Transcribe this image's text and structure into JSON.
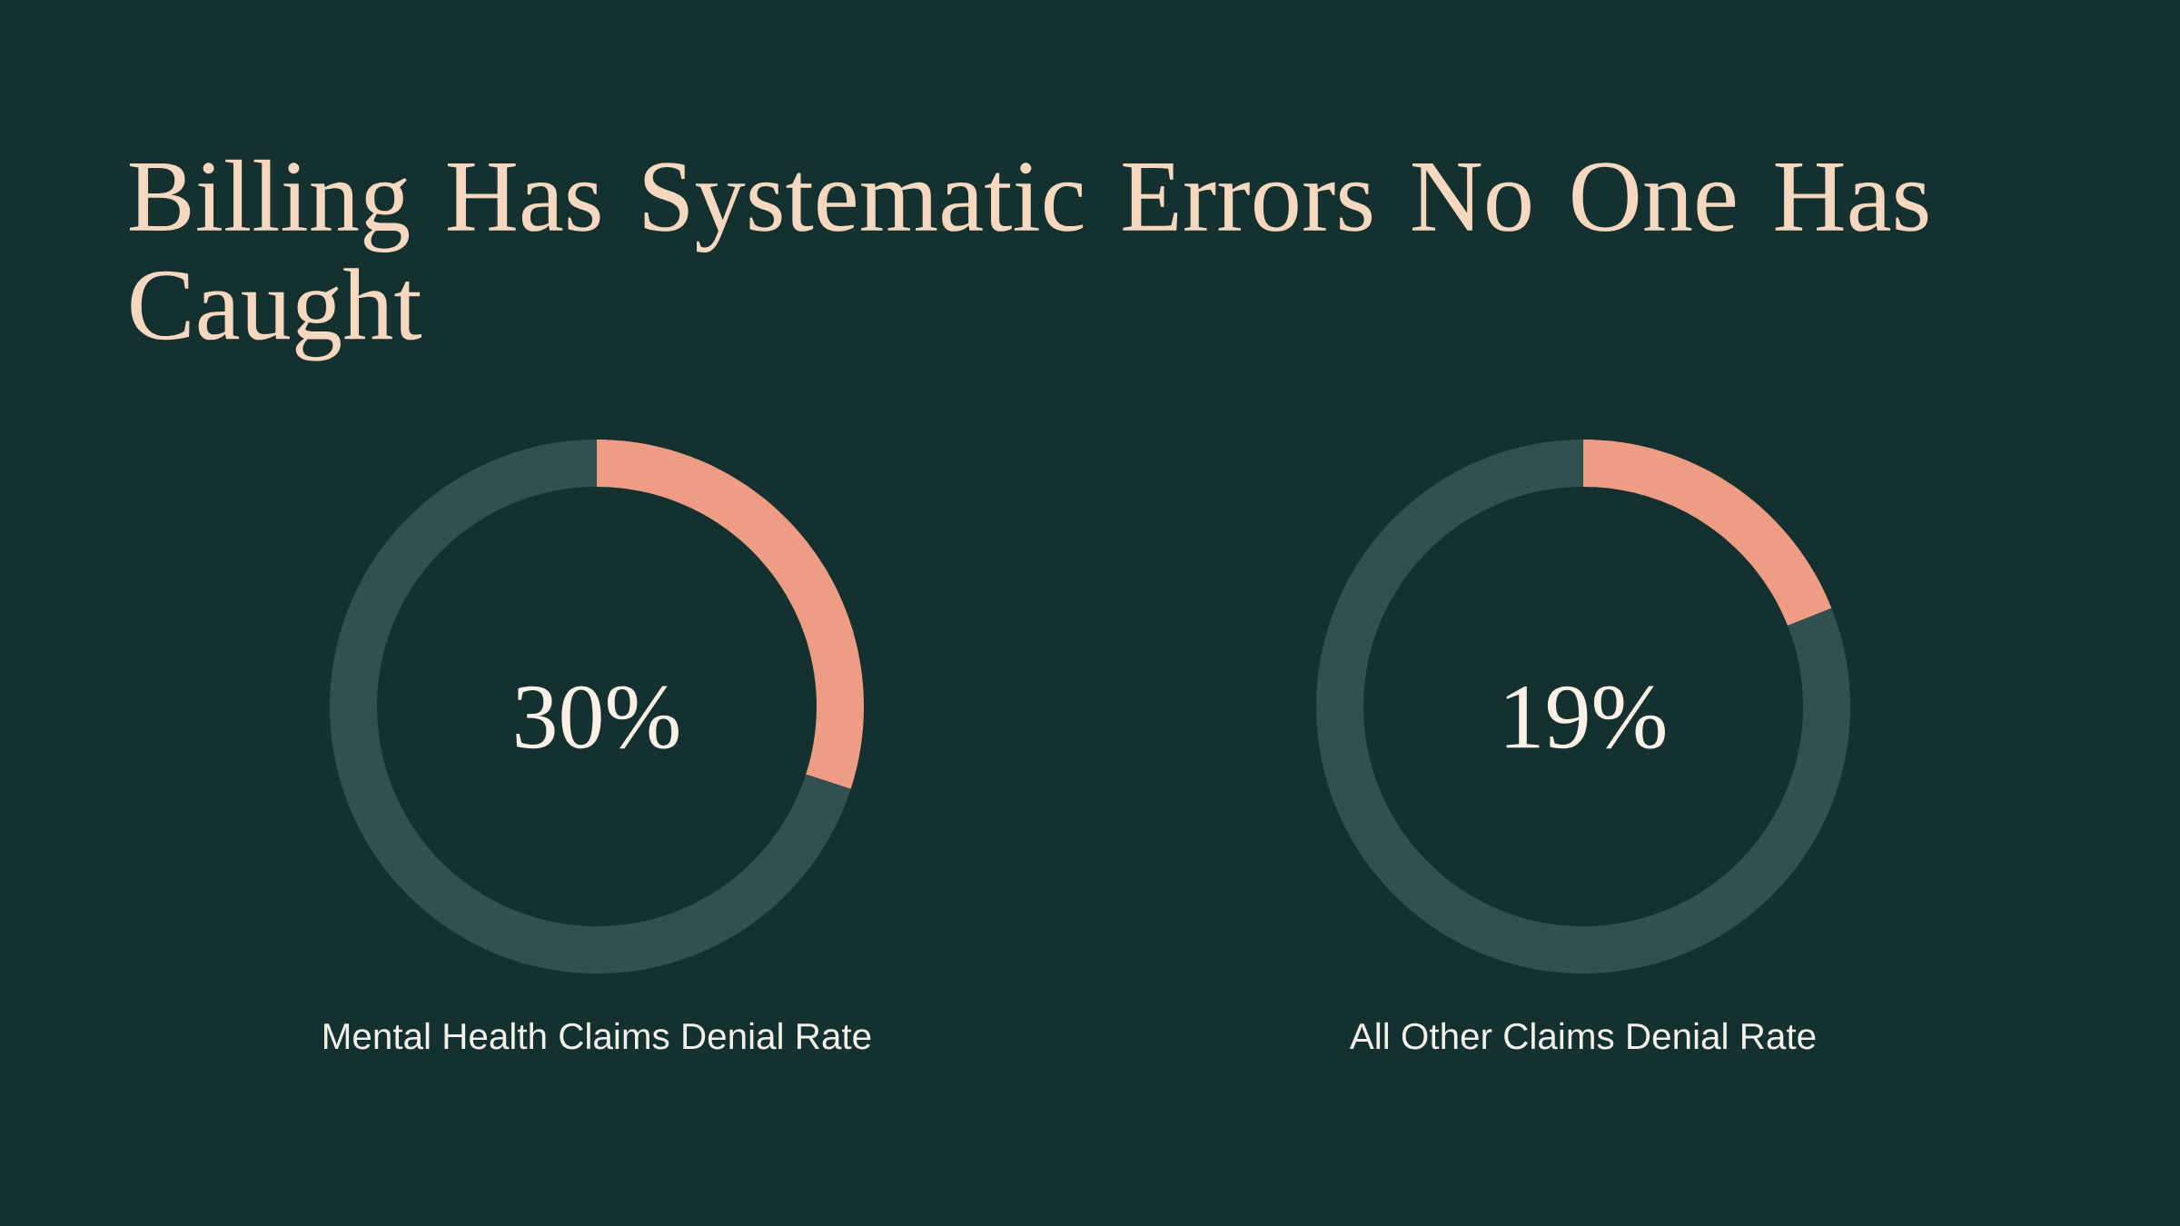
{
  "chart_data": [
    {
      "type": "donut",
      "title": "Billing Has Systematic Errors No One Has Caught",
      "xlabel": "Mental Health Claims Denial Rate",
      "categories": [
        null,
        null
      ],
      "values": [
        30,
        70
      ],
      "colors": [
        "#ee9d84",
        "#31514f"
      ],
      "annotations": [
        "30%"
      ]
    },
    {
      "type": "donut",
      "xlabel": "All Other Claims Denial Rate",
      "categories": [
        null,
        null
      ],
      "values": [
        19,
        81
      ],
      "colors": [
        "#ee9d84",
        "#31514f"
      ],
      "annotations": [
        "19%"
      ]
    }
  ]
}
